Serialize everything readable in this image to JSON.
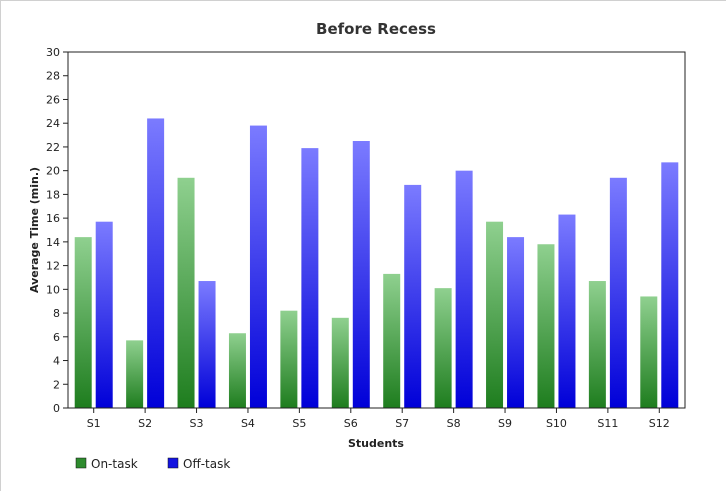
{
  "chart_data": {
    "type": "bar",
    "title": "Before Recess",
    "xlabel": "Students",
    "ylabel": "Average Time (min.)",
    "ylim": [
      0,
      30
    ],
    "yticks": [
      0,
      2,
      4,
      6,
      8,
      10,
      12,
      14,
      16,
      18,
      20,
      22,
      24,
      26,
      28,
      30
    ],
    "categories": [
      "S1",
      "S2",
      "S3",
      "S4",
      "S5",
      "S6",
      "S7",
      "S8",
      "S9",
      "S10",
      "S11",
      "S12"
    ],
    "series": [
      {
        "name": "On-task",
        "color": "#2e8b2e",
        "values": [
          14.4,
          5.7,
          19.4,
          6.3,
          8.2,
          7.6,
          11.3,
          10.1,
          15.7,
          13.8,
          10.7,
          9.4
        ]
      },
      {
        "name": "Off-task",
        "color": "#1414e0",
        "values": [
          15.7,
          24.4,
          10.7,
          23.8,
          21.9,
          22.5,
          18.8,
          20.0,
          14.4,
          16.3,
          19.4,
          20.7
        ]
      }
    ],
    "grid": false,
    "legend_position": "bottom-left"
  }
}
